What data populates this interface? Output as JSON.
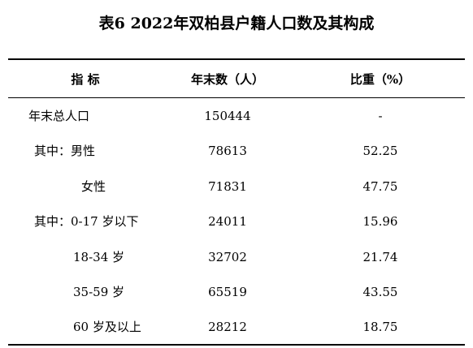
{
  "title": "表6 2022年双柏县户籍人口数及其构成",
  "table": {
    "header": [
      "指 标",
      "年末数（人）",
      "比重（%）"
    ],
    "rows": [
      [
        "年末总人口",
        "150444",
        "-"
      ],
      [
        "其中：男性",
        "78613",
        "52.25"
      ],
      [
        "女性",
        "71831",
        "47.75"
      ],
      [
        "其中：0-17 岁以下",
        "24011",
        "15.96"
      ],
      [
        "18-34 岁",
        "32702",
        "21.74"
      ],
      [
        "35-59 岁",
        "65519",
        "43.55"
      ],
      [
        "60 岁及以上",
        "28212",
        "18.75"
      ]
    ]
  }
}
